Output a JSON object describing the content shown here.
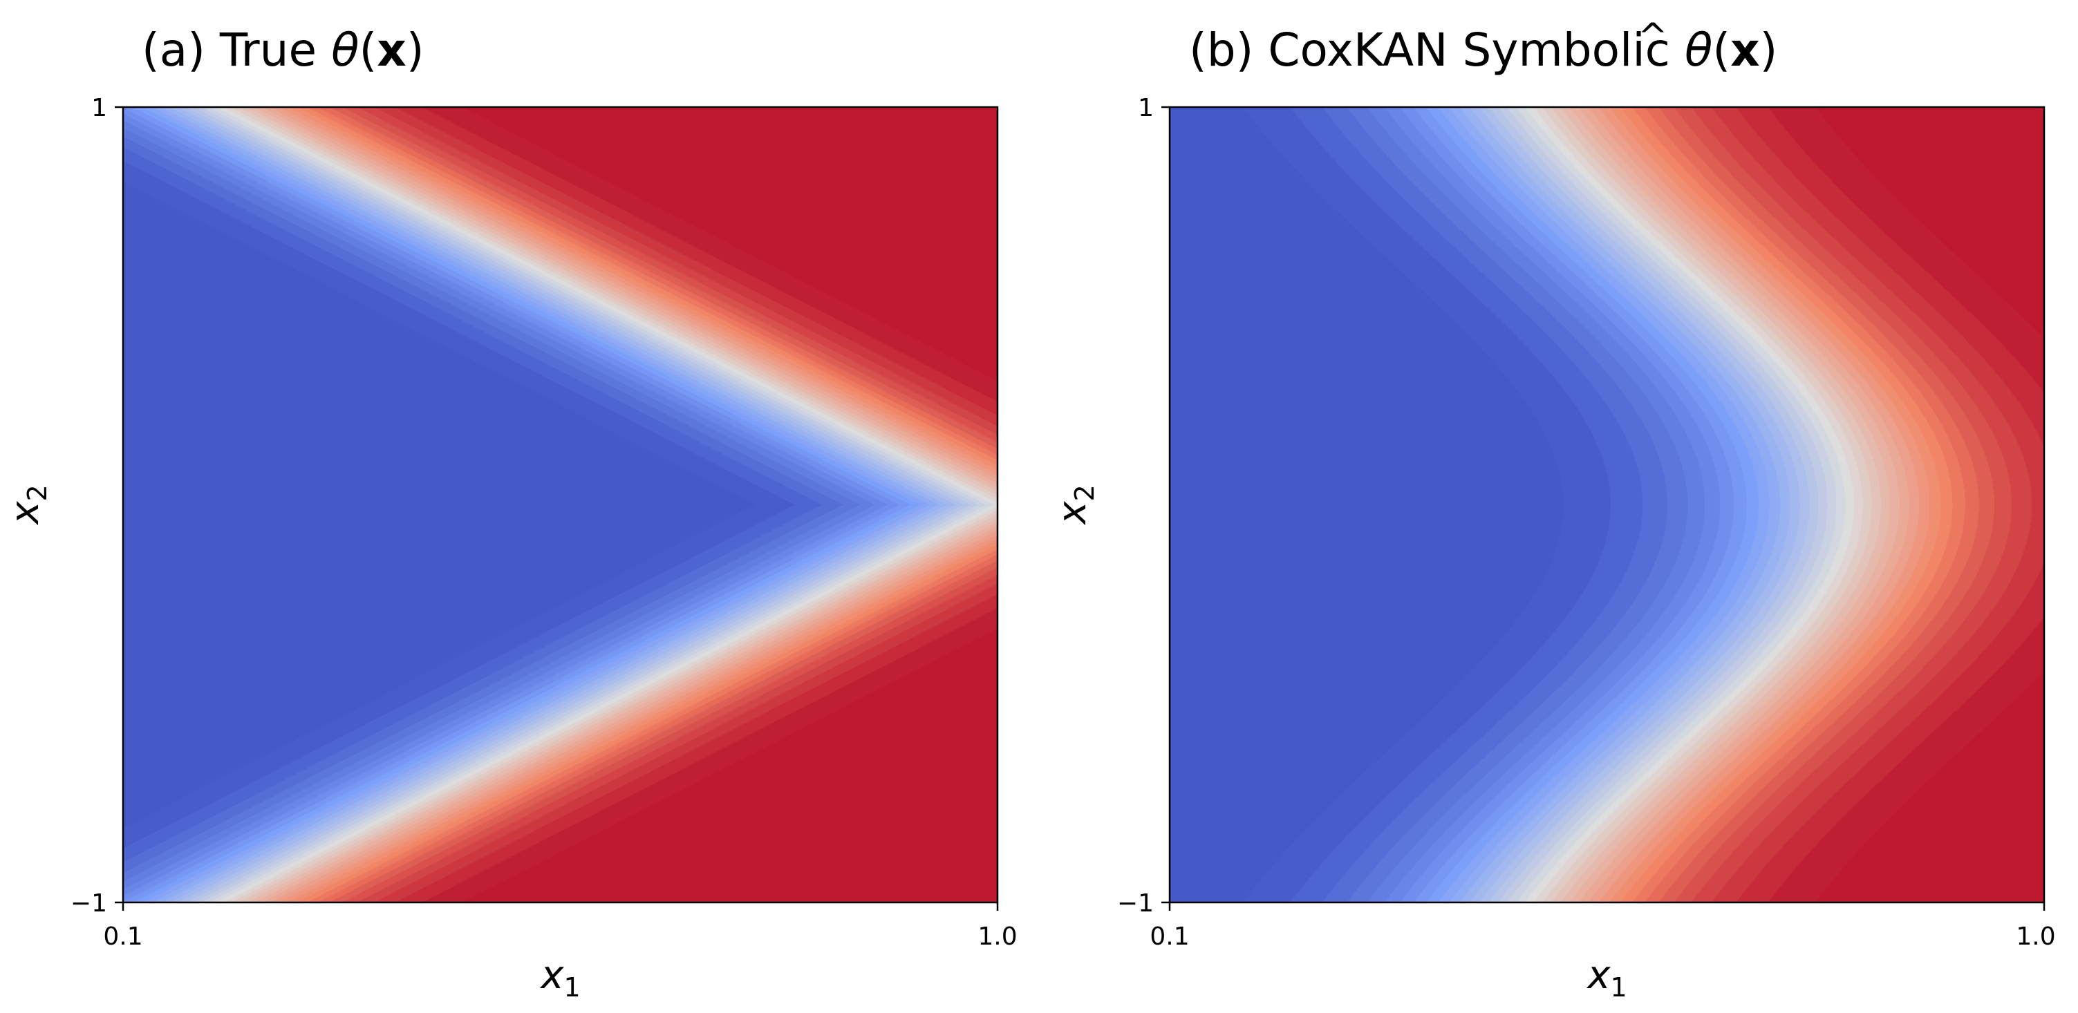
{
  "chart_data": [
    {
      "type": "heatmap",
      "title_prefix": "(a) True ",
      "title_symbol": "θ",
      "title_open": "(",
      "title_arg": "x",
      "title_close": ")",
      "xlabel": {
        "base": "x",
        "sub": "1"
      },
      "ylabel": {
        "base": "x",
        "sub": "2"
      },
      "xlim": [
        0.1,
        1.0
      ],
      "ylim": [
        -1,
        1
      ],
      "x_ticks": [
        0.1,
        1.0
      ],
      "x_tick_labels": [
        "0.1",
        "1.0"
      ],
      "y_ticks": [
        -1,
        1
      ],
      "y_tick_labels": [
        "−1",
        "1"
      ],
      "colormap": "coolwarm",
      "surface": "true",
      "grid": false
    },
    {
      "type": "heatmap",
      "title_prefix": "(b) CoxKAN Symbolic ",
      "title_symbol": "θ",
      "title_hat": "^",
      "title_open": "(",
      "title_arg": "x",
      "title_close": ")",
      "xlabel": {
        "base": "x",
        "sub": "1"
      },
      "ylabel": {
        "base": "x",
        "sub": "2"
      },
      "xlim": [
        0.1,
        1.0
      ],
      "ylim": [
        -1,
        1
      ],
      "x_ticks": [
        0.1,
        1.0
      ],
      "x_tick_labels": [
        "0.1",
        "1.0"
      ],
      "y_ticks": [
        -1,
        1
      ],
      "y_tick_labels": [
        "−1",
        "1"
      ],
      "colormap": "coolwarm",
      "surface": "symbolic",
      "grid": false
    }
  ],
  "colors": {
    "coolwarm_low": "#3f50bf",
    "coolwarm_mid": "#dddddd",
    "coolwarm_high": "#a4232e"
  }
}
